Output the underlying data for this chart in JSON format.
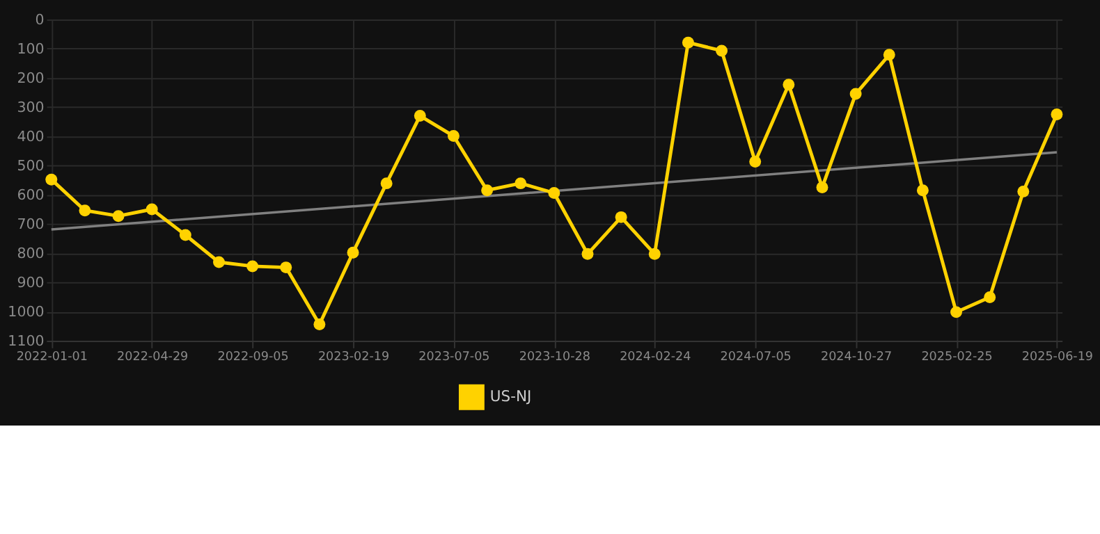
{
  "chart_data": {
    "type": "line",
    "categories": [
      "2022-01-01",
      null,
      null,
      "2022-04-29",
      null,
      null,
      "2022-09-05",
      null,
      null,
      "2023-02-19",
      null,
      null,
      "2023-07-05",
      null,
      null,
      "2023-10-28",
      null,
      null,
      "2024-02-24",
      null,
      null,
      "2024-07-05",
      null,
      null,
      "2024-10-27",
      null,
      null,
      "2025-02-25",
      null,
      null,
      "2025-06-19"
    ],
    "series": [
      {
        "name": "US-NJ",
        "color": "#ffd200",
        "marker": "circle",
        "values": [
          548,
          654,
          673,
          650,
          738,
          831,
          845,
          849,
          1044,
          798,
          561,
          330,
          399,
          585,
          561,
          594,
          803,
          677,
          803,
          79,
          107,
          487,
          223,
          575,
          255,
          121,
          585,
          1002,
          951,
          589,
          325
        ]
      },
      {
        "type": "line",
        "color": "#808080",
        "marker": "none",
        "values": [
          719,
          null,
          null,
          null,
          null,
          null,
          null,
          null,
          null,
          null,
          null,
          null,
          null,
          null,
          null,
          null,
          null,
          null,
          null,
          null,
          null,
          null,
          null,
          null,
          null,
          null,
          null,
          null,
          null,
          null,
          455
        ]
      }
    ],
    "ylim": [
      1100,
      0
    ],
    "yticks": [
      0,
      100,
      200,
      300,
      400,
      500,
      600,
      700,
      800,
      900,
      1000,
      1100
    ],
    "grid": true,
    "legend": "bottom"
  }
}
